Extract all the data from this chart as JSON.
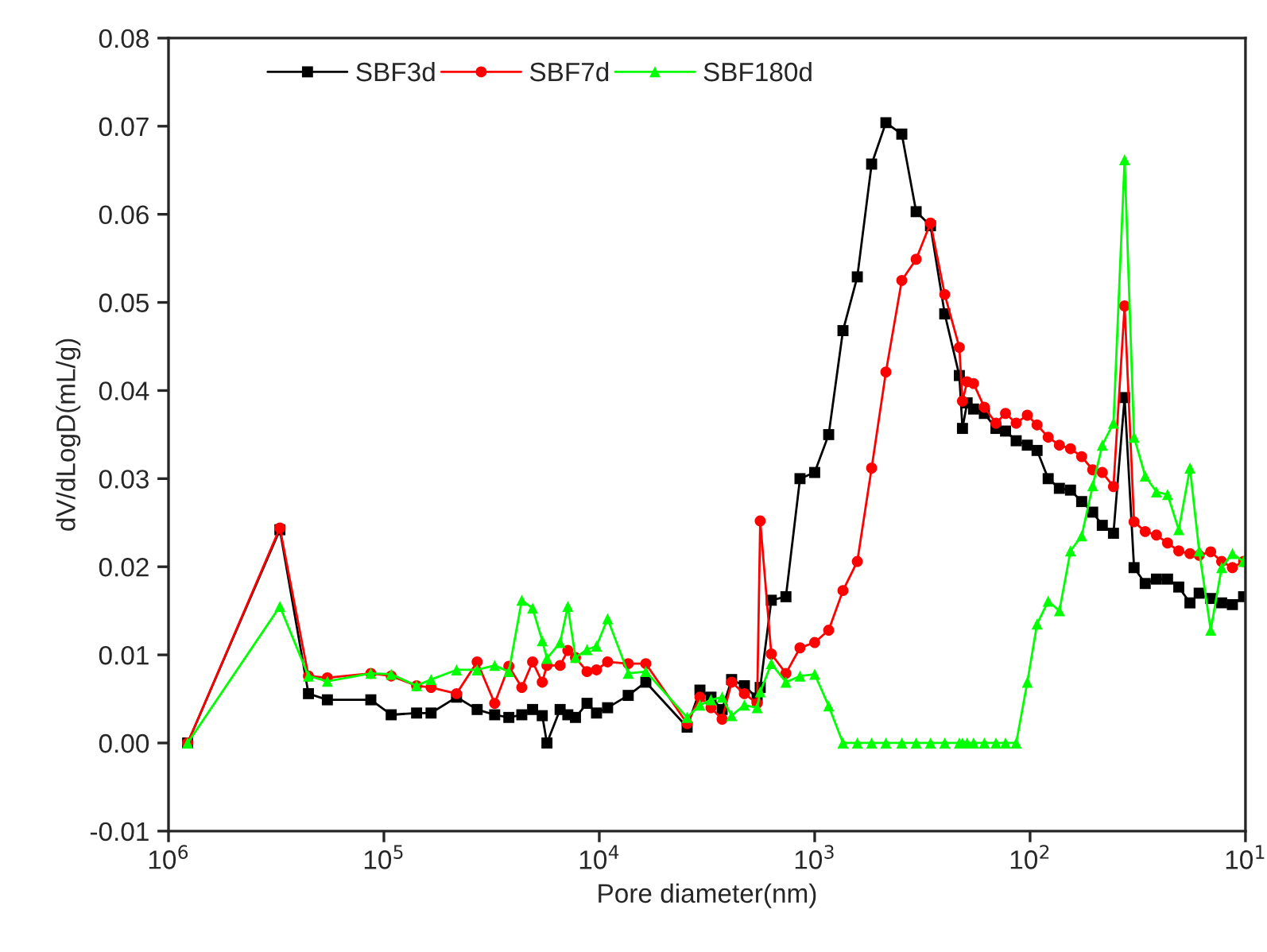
{
  "chart_data": {
    "type": "line",
    "xlabel": "Pore diameter(nm)",
    "ylabel": "dV/dLogD(mL/g)",
    "log": "x",
    "grid": false,
    "legend": "top",
    "xlim": [
      1000000,
      10
    ],
    "xticks": [
      {
        "value": 1000000,
        "label": "10$^{6}$"
      },
      {
        "value": 100000,
        "label": "10$^{5}$"
      },
      {
        "value": 10000,
        "label": "10$^{4}$"
      },
      {
        "value": 1000,
        "label": "10$^{3}$"
      },
      {
        "value": 100,
        "label": "10$^{2}$"
      },
      {
        "value": 10,
        "label": "10$^{1}$"
      }
    ],
    "ylim": [
      -0.01,
      0.08
    ],
    "yticks": [
      {
        "value": -0.01,
        "label": "-0.01"
      },
      {
        "value": 0,
        "label": "0.00"
      },
      {
        "value": 0.01,
        "label": "0.01"
      },
      {
        "value": 0.02,
        "label": "0.02"
      },
      {
        "value": 0.03,
        "label": "0.03"
      },
      {
        "value": 0.04,
        "label": "0.04"
      },
      {
        "value": 0.05,
        "label": "0.05"
      },
      {
        "value": 0.06,
        "label": "0.06"
      },
      {
        "value": 0.07,
        "label": "0.07"
      },
      {
        "value": 0.08,
        "label": "0.08"
      }
    ],
    "x": [
      815000,
      304000,
      224000,
      183000,
      115000,
      92500,
      70500,
      60400,
      46000,
      36900,
      30600,
      26300,
      22900,
      20400,
      18400,
      17500,
      15200,
      14000,
      12900,
      11400,
      10300,
      9150,
      7340,
      6080,
      3910,
      3410,
      3030,
      2690,
      2430,
      2120,
      1850,
      1790,
      1590,
      1360,
      1170,
      1000,
      861,
      739,
      634,
      544,
      467,
      394,
      338,
      290,
      249,
      213,
      206,
      196,
      183,
      163,
      144,
      130,
      116,
      103,
      92.8,
      82.4,
      73.1,
      64.9,
      57.6,
      51.2,
      46.2,
      41.0,
      36.4,
      32.9,
      29.2,
      25.9,
      23.0,
      20.4,
      18.1,
      16.4,
      14.5,
      12.9,
      11.5,
      10.2
    ],
    "series": [
      {
        "name": "SBF3d",
        "color": "#000000",
        "marker": "square",
        "values": [
          0.0,
          0.0242,
          0.0056,
          0.0049,
          0.0049,
          0.0032,
          0.0034,
          0.0034,
          0.0052,
          0.0038,
          0.0032,
          0.0029,
          0.0032,
          0.0038,
          0.0031,
          0.0,
          0.0038,
          0.0032,
          0.0029,
          0.0045,
          0.0034,
          0.004,
          0.0054,
          0.0069,
          0.0018,
          0.006,
          0.0052,
          0.0038,
          0.0072,
          0.0065,
          0.0051,
          0.0063,
          0.0162,
          0.0166,
          0.03,
          0.0307,
          0.035,
          0.0468,
          0.0529,
          0.0657,
          0.0704,
          0.0691,
          0.0603,
          0.0587,
          0.0487,
          0.0417,
          0.0357,
          0.0386,
          0.0379,
          0.0374,
          0.0357,
          0.0354,
          0.0343,
          0.0338,
          0.0332,
          0.03,
          0.0289,
          0.0287,
          0.0274,
          0.0262,
          0.0247,
          0.0238,
          0.0392,
          0.0199,
          0.0181,
          0.0186,
          0.0186,
          0.0177,
          0.0159,
          0.017,
          0.0164,
          0.0159,
          0.0157,
          0.0166
        ]
      },
      {
        "name": "SBF7d",
        "color": "#ff0000",
        "marker": "circle",
        "values": [
          0.0,
          0.0244,
          0.0076,
          0.0074,
          0.0079,
          0.0076,
          0.0065,
          0.0063,
          0.0056,
          0.0092,
          0.0045,
          0.0087,
          0.0063,
          0.0092,
          0.0069,
          0.0088,
          0.0088,
          0.0105,
          0.0097,
          0.0081,
          0.0083,
          0.0092,
          0.009,
          0.009,
          0.0022,
          0.0052,
          0.004,
          0.0027,
          0.0069,
          0.0056,
          0.0045,
          0.0252,
          0.0101,
          0.0079,
          0.0108,
          0.0114,
          0.0128,
          0.0173,
          0.0206,
          0.0312,
          0.0421,
          0.0525,
          0.0549,
          0.059,
          0.0509,
          0.0449,
          0.0388,
          0.041,
          0.0408,
          0.0381,
          0.0363,
          0.0374,
          0.0363,
          0.0372,
          0.0361,
          0.0347,
          0.0338,
          0.0334,
          0.0325,
          0.031,
          0.0307,
          0.0291,
          0.0496,
          0.0251,
          0.024,
          0.0236,
          0.0227,
          0.0218,
          0.0215,
          0.0213,
          0.0217,
          0.0206,
          0.0199,
          0.0206
        ]
      },
      {
        "name": "SBF180d",
        "color": "#00ff00",
        "marker": "triangle",
        "values": [
          0.0,
          0.0155,
          0.0076,
          0.007,
          0.0079,
          0.0078,
          0.0065,
          0.0072,
          0.0083,
          0.0083,
          0.0088,
          0.0081,
          0.0162,
          0.0153,
          0.0116,
          0.0096,
          0.0114,
          0.0155,
          0.0097,
          0.0106,
          0.011,
          0.0141,
          0.0079,
          0.0081,
          0.0029,
          0.0043,
          0.0049,
          0.0052,
          0.0031,
          0.0043,
          0.004,
          0.0058,
          0.009,
          0.0069,
          0.0076,
          0.0078,
          0.0042,
          0.0,
          0.0,
          0.0,
          0.0,
          0.0,
          0.0,
          0.0,
          0.0,
          0.0,
          0.0,
          0.0,
          0.0,
          0.0,
          0.0,
          0.0,
          0.0,
          0.0069,
          0.0135,
          0.0161,
          0.015,
          0.0218,
          0.0235,
          0.0292,
          0.0338,
          0.0363,
          0.0662,
          0.0347,
          0.0303,
          0.0285,
          0.0282,
          0.0242,
          0.0312,
          0.0218,
          0.0128,
          0.0199,
          0.0215,
          0.0206
        ]
      }
    ]
  }
}
